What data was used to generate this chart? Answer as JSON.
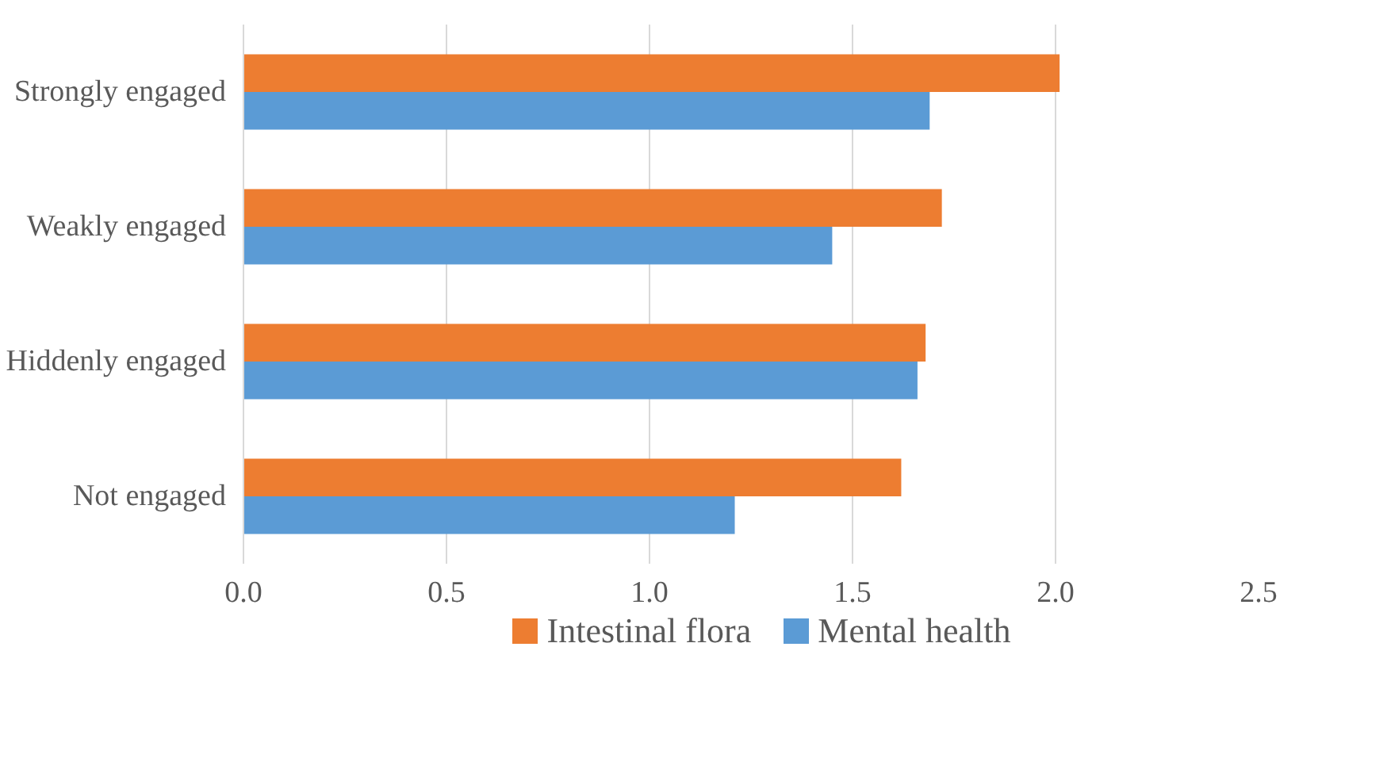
{
  "chart_data": {
    "type": "bar",
    "orientation": "horizontal",
    "categories": [
      "Strongly engaged",
      "Weakly engaged",
      "Hiddenly engaged",
      "Not engaged"
    ],
    "series": [
      {
        "name": "Intestinal flora",
        "color": "#ed7d31",
        "values": [
          2.01,
          1.72,
          1.68,
          1.62
        ]
      },
      {
        "name": "Mental health",
        "color": "#5b9bd5",
        "values": [
          1.69,
          1.45,
          1.66,
          1.21
        ]
      }
    ],
    "xlim": [
      0,
      2.5
    ],
    "xticks": [
      {
        "value": 0,
        "label": "0.0"
      },
      0.5,
      {
        "value": 1,
        "label": "1.0"
      },
      1.5,
      {
        "value": 2,
        "label": "2.0"
      },
      2.5
    ],
    "grid": "x",
    "legend": "bottom"
  }
}
